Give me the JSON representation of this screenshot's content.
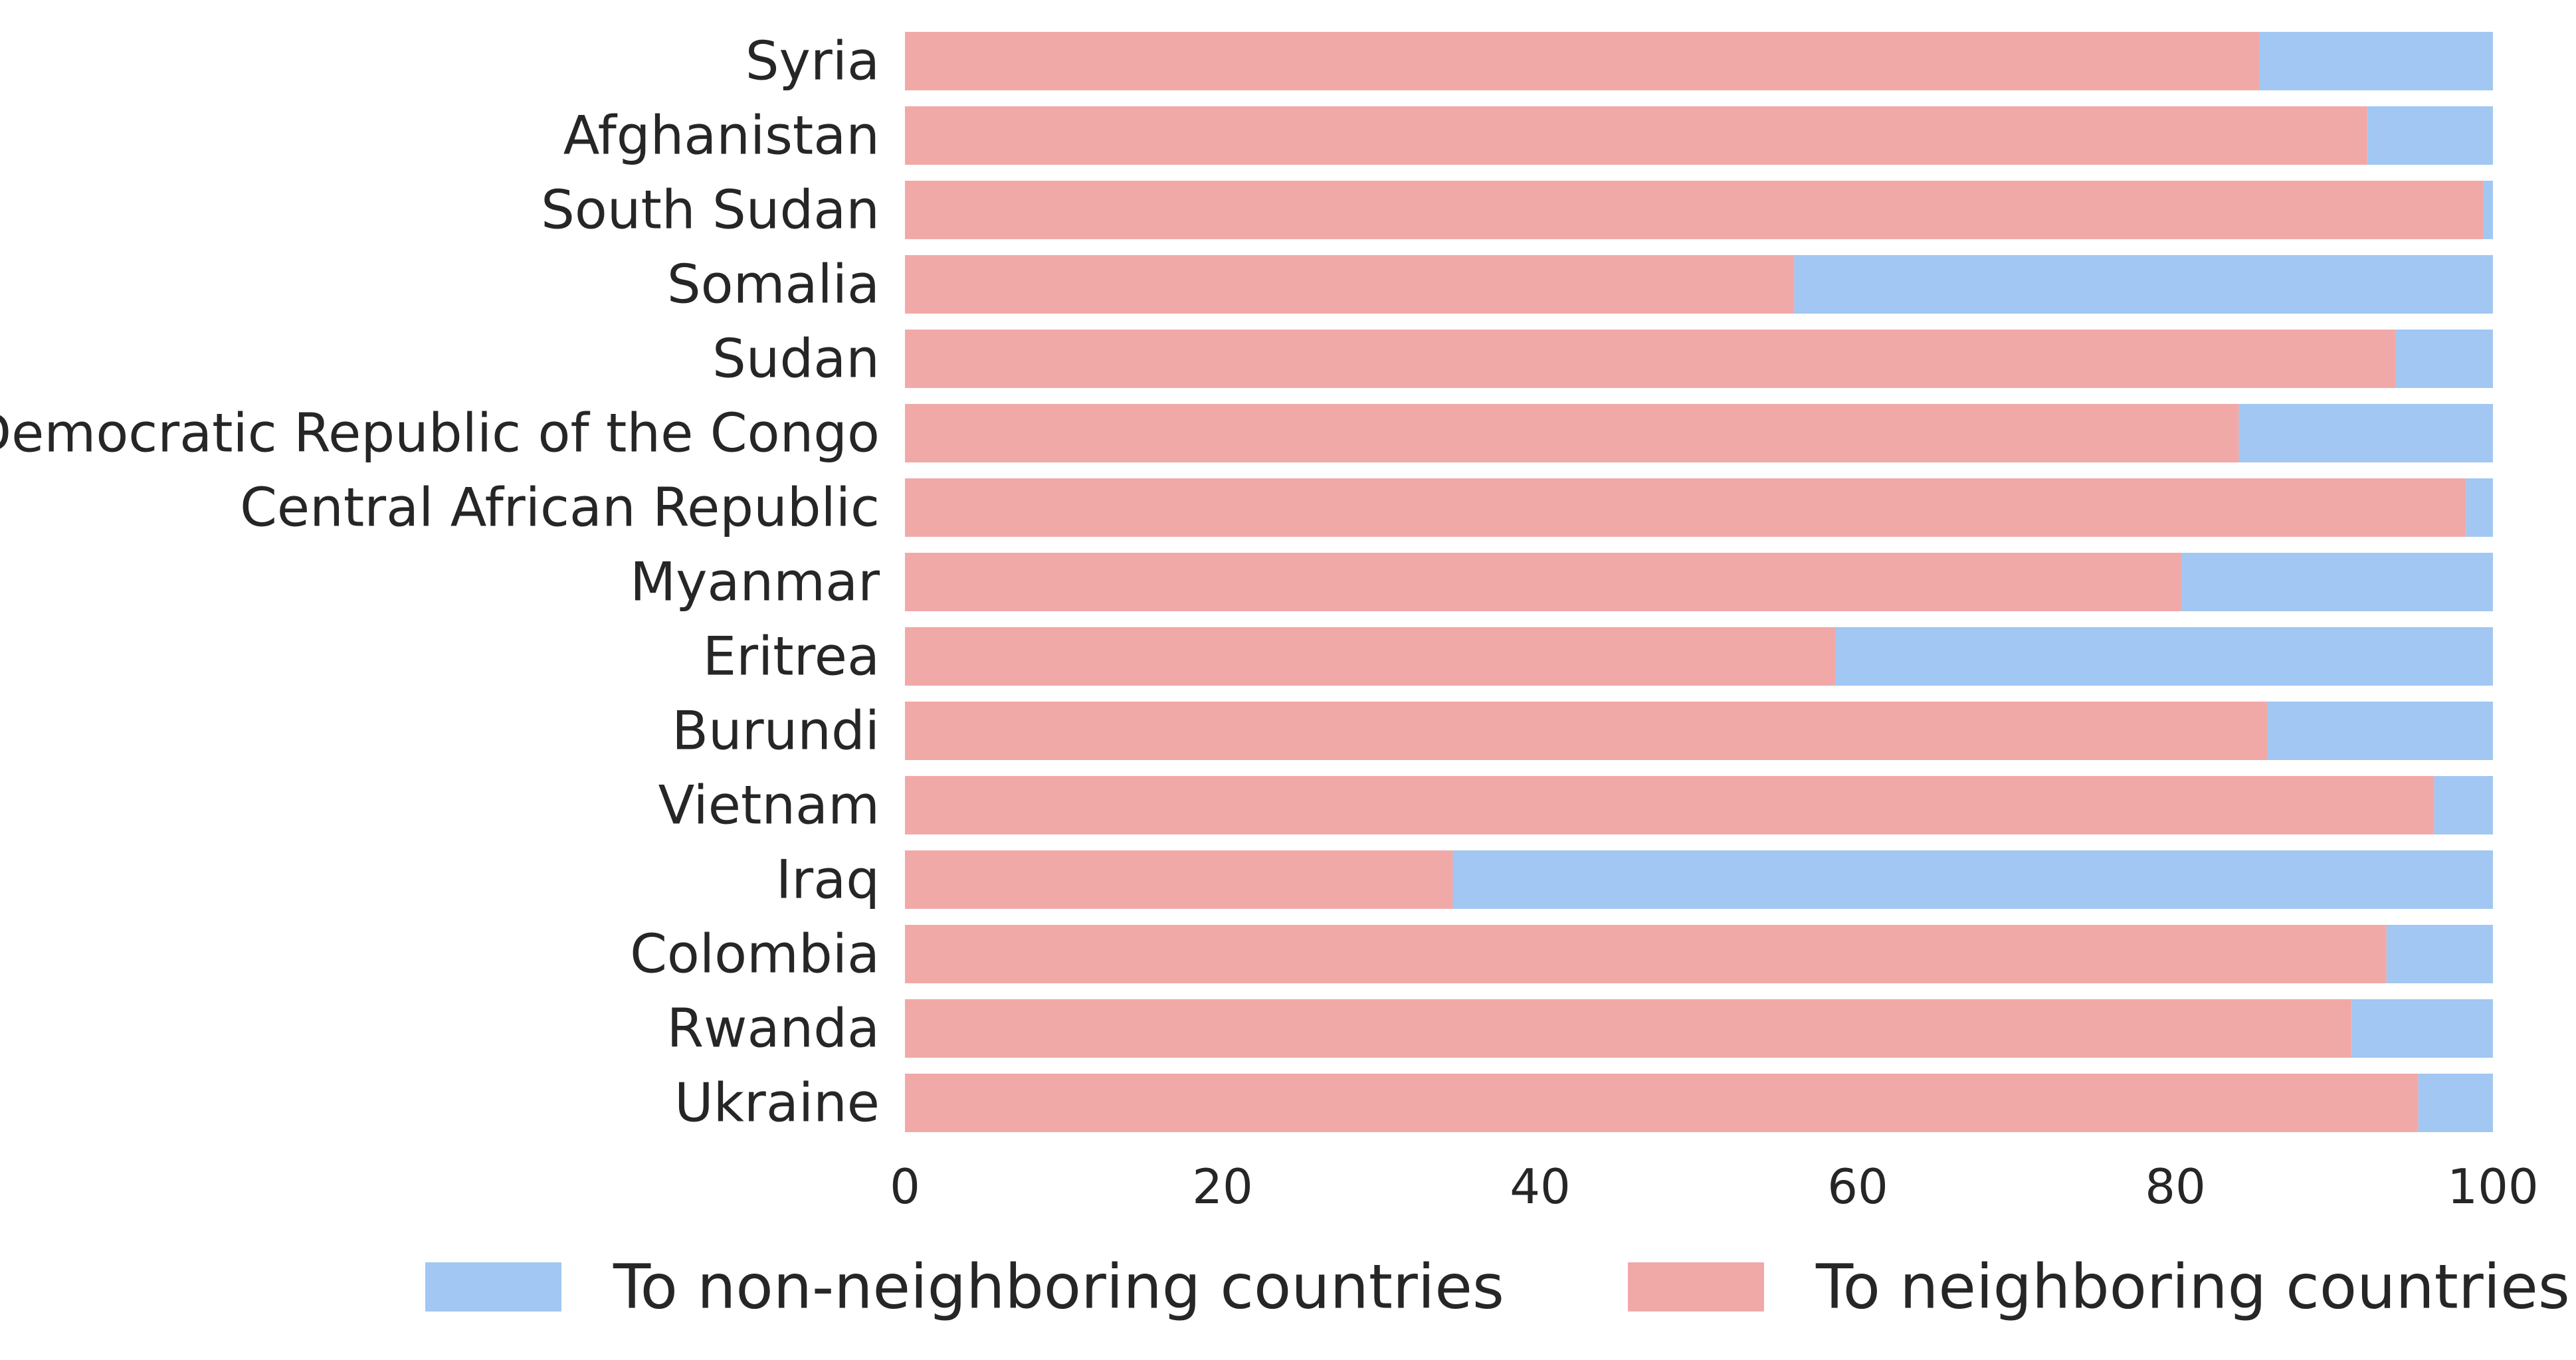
{
  "chart_data": {
    "type": "bar",
    "orientation": "horizontal",
    "stacked": true,
    "categories": [
      "Syria",
      "Afghanistan",
      "South Sudan",
      "Somalia",
      "Sudan",
      "Democratic Republic of the Congo",
      "Central African Republic",
      "Myanmar",
      "Eritrea",
      "Burundi",
      "Vietnam",
      "Iraq",
      "Colombia",
      "Rwanda",
      "Ukraine"
    ],
    "series": [
      {
        "name": "To neighboring countries",
        "color": "#f1a9a8",
        "values": [
          85.3,
          92.1,
          99.4,
          56.0,
          93.9,
          84.0,
          98.3,
          80.4,
          58.6,
          85.8,
          96.3,
          34.5,
          93.3,
          91.1,
          95.3
        ]
      },
      {
        "name": "To non-neighboring countries",
        "color": "#a1c7f2",
        "values": [
          14.7,
          7.9,
          0.6,
          44.0,
          6.1,
          16.0,
          1.7,
          19.6,
          41.4,
          14.2,
          3.7,
          65.5,
          6.7,
          8.9,
          4.7
        ]
      }
    ],
    "xlim": [
      0,
      100
    ],
    "xticks": [
      "0",
      "20",
      "40",
      "60",
      "80",
      "100"
    ],
    "grid": false,
    "legend": {
      "placement": "bottom",
      "entries": [
        "To non-neighboring countries",
        "To neighboring countries"
      ]
    }
  }
}
